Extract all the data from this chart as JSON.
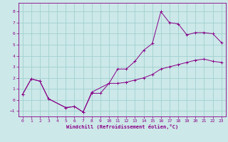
{
  "xlabel": "Windchill (Refroidissement éolien,°C)",
  "line1_x": [
    0,
    1,
    2,
    3,
    5,
    6,
    7,
    8,
    10,
    11,
    12,
    13,
    14,
    15,
    16,
    17,
    18,
    19,
    20,
    21,
    22,
    23
  ],
  "line1_y": [
    0.5,
    1.9,
    1.7,
    0.1,
    -0.7,
    -0.6,
    -1.1,
    0.7,
    1.5,
    2.8,
    2.8,
    3.5,
    4.5,
    5.1,
    8.0,
    7.0,
    6.9,
    5.9,
    6.1,
    6.1,
    6.0,
    5.2
  ],
  "line2_x": [
    0,
    1,
    2,
    3,
    5,
    6,
    7,
    8,
    9,
    10,
    11,
    12,
    13,
    14,
    15,
    16,
    17,
    18,
    19,
    20,
    21,
    22,
    23
  ],
  "line2_y": [
    0.5,
    1.9,
    1.7,
    0.1,
    -0.7,
    -0.6,
    -1.1,
    0.6,
    0.6,
    1.5,
    1.5,
    1.6,
    1.8,
    2.0,
    2.3,
    2.8,
    3.0,
    3.2,
    3.4,
    3.6,
    3.7,
    3.5,
    3.4
  ],
  "bg_color": "#cce8e8",
  "line_color": "#880088",
  "grid_color": "#99cccc",
  "xlim": [
    -0.5,
    23.5
  ],
  "ylim": [
    -1.5,
    8.8
  ],
  "yticks": [
    -1,
    0,
    1,
    2,
    3,
    4,
    5,
    6,
    7,
    8
  ],
  "xticks": [
    0,
    1,
    2,
    3,
    4,
    5,
    6,
    7,
    8,
    9,
    10,
    11,
    12,
    13,
    14,
    15,
    16,
    17,
    18,
    19,
    20,
    21,
    22,
    23
  ]
}
